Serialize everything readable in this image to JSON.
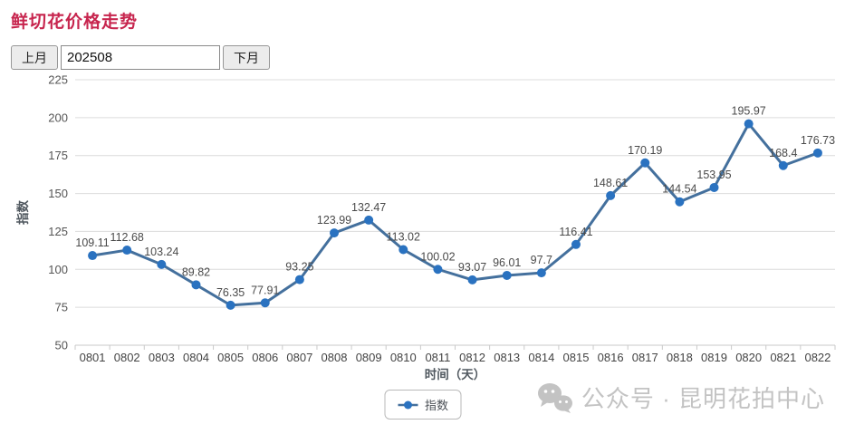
{
  "page": {
    "title": "鲜切花价格走势",
    "colors": {
      "title": "#c7254e",
      "background": "#ffffff"
    }
  },
  "controls": {
    "prev_label": "上月",
    "month_value": "202508",
    "next_label": "下月"
  },
  "chart_data": {
    "type": "line",
    "categories": [
      "0801",
      "0802",
      "0803",
      "0804",
      "0805",
      "0806",
      "0807",
      "0808",
      "0809",
      "0810",
      "0811",
      "0812",
      "0813",
      "0814",
      "0815",
      "0816",
      "0817",
      "0818",
      "0819",
      "0820",
      "0821",
      "0822"
    ],
    "series": [
      {
        "name": "指数",
        "values": [
          109.11,
          112.68,
          103.24,
          89.82,
          76.35,
          77.91,
          93.25,
          123.99,
          132.47,
          113.02,
          100.02,
          93.07,
          96.01,
          97.7,
          116.41,
          148.61,
          170.19,
          144.54,
          153.95,
          195.97,
          168.4,
          176.73
        ]
      }
    ],
    "xlabel": "时间（天）",
    "ylabel": "指数",
    "ylim": [
      50,
      225
    ],
    "ytick_step": 25,
    "grid": true,
    "data_labels": true,
    "legend_position": "bottom",
    "colors": {
      "line": "#44709d",
      "marker": "#2a72c0",
      "grid": "#dcdcdc",
      "axis_line": "#c9c9c9",
      "tick_label": "#555555",
      "data_label": "#4a4a4a",
      "axis_title": "#50585f"
    }
  },
  "watermark": {
    "icon": "wechat-icon",
    "text": "公众号 · 昆明花拍中心",
    "color": "#c3c3c3"
  }
}
